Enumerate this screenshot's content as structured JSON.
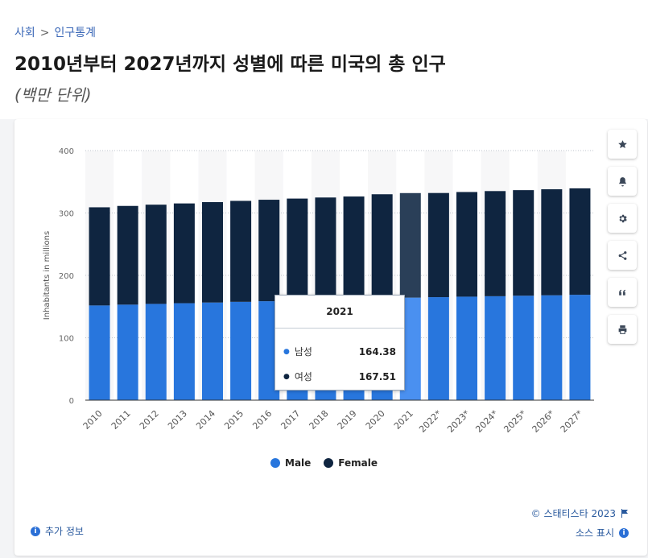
{
  "breadcrumb": {
    "items": [
      "사회",
      "인구통계"
    ],
    "separator": ">"
  },
  "header": {
    "title": "2010년부터 2027년까지 성별에 따른 미국의 총 인구",
    "subtitle": "(백만 단위)"
  },
  "tooltip": {
    "title": "2021",
    "rows": [
      {
        "label": "남성",
        "value": "164.38"
      },
      {
        "label": "여성",
        "value": "167.51"
      }
    ]
  },
  "legend": {
    "male": "Male",
    "female": "Female"
  },
  "footer": {
    "more_info": "추가 정보",
    "copyright": "© 스태티스타 2023",
    "show_source": "소스 표시"
  },
  "sidebar_icons": [
    "star-icon",
    "bell-icon",
    "gear-icon",
    "share-icon",
    "quote-icon",
    "print-icon"
  ],
  "colors": {
    "male": "#2876dd",
    "female": "#0f2540",
    "male_highlight": "#4a90f0",
    "female_highlight": "#2a3f58",
    "accent": "#3a67b7"
  },
  "chart_data": {
    "type": "bar",
    "stacked": true,
    "categories": [
      "2010",
      "2011",
      "2012",
      "2013",
      "2014",
      "2015",
      "2016",
      "2017",
      "2018",
      "2019",
      "2020",
      "2021",
      "2022*",
      "2023*",
      "2024*",
      "2025*",
      "2026*",
      "2027*"
    ],
    "series": [
      {
        "name": "Male",
        "values": [
          151.8,
          153.1,
          154.3,
          155.4,
          156.5,
          157.6,
          158.6,
          159.6,
          160.5,
          161.3,
          163.4,
          164.38,
          165.1,
          165.9,
          166.6,
          167.4,
          168.1,
          168.9
        ]
      },
      {
        "name": "Female",
        "values": [
          157.3,
          158.2,
          159.0,
          159.9,
          160.9,
          161.8,
          162.6,
          163.5,
          164.3,
          165.1,
          166.6,
          167.51,
          166.9,
          167.7,
          168.5,
          169.2,
          169.9,
          170.6
        ]
      }
    ],
    "ylabel": "Inhabitants in millions",
    "yticks": [
      0,
      100,
      200,
      300,
      400
    ],
    "ylim": [
      0,
      400
    ],
    "highlighted": "2021",
    "grid": true,
    "legend_position": "bottom"
  }
}
